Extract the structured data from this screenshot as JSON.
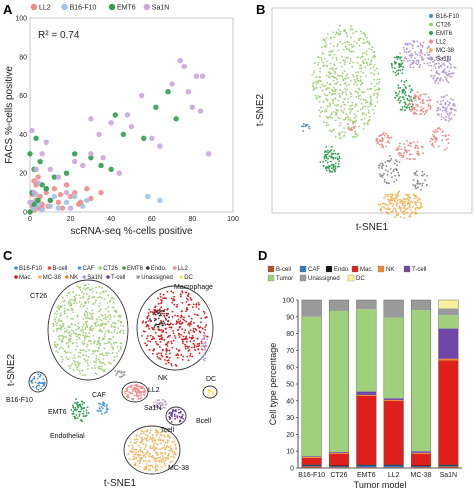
{
  "panels": {
    "a": {
      "label": "A"
    },
    "b": {
      "label": "B"
    },
    "c": {
      "label": "C"
    },
    "d": {
      "label": "D"
    }
  },
  "chart_data": [
    {
      "id": "A",
      "type": "scatter",
      "xlabel": "scRNA-seq %-cells positive",
      "ylabel": "FACS %-cells positive",
      "annotation": "R² = 0.74",
      "xlim": [
        0,
        100
      ],
      "ylim": [
        0,
        100
      ],
      "xticks": [
        0,
        20,
        40,
        60,
        80,
        100
      ],
      "yticks": [
        0,
        20,
        40,
        60,
        80,
        100
      ],
      "legend_position": "top",
      "series": [
        {
          "name": "LL2",
          "color": "#f08b88",
          "x": [
            0,
            1,
            2,
            3,
            4,
            5,
            6,
            8,
            10,
            12,
            15,
            18,
            20,
            22,
            25,
            28,
            30,
            35,
            3,
            6,
            9,
            14,
            2,
            4,
            1,
            16,
            24
          ],
          "y": [
            0,
            3,
            1,
            6,
            2,
            8,
            4,
            10,
            6,
            12,
            9,
            14,
            8,
            10,
            5,
            12,
            7,
            10,
            14,
            2,
            3,
            5,
            16,
            18,
            9,
            2,
            4
          ]
        },
        {
          "name": "B16-F10",
          "color": "#9ec4e8",
          "x": [
            0,
            2,
            4,
            6,
            10,
            14,
            18,
            22,
            28,
            3,
            8,
            12,
            58,
            64,
            1,
            26
          ],
          "y": [
            0,
            2,
            4,
            1,
            3,
            2,
            5,
            8,
            6,
            9,
            12,
            8,
            8,
            6,
            5,
            3
          ]
        },
        {
          "name": "EMT6",
          "color": "#2e9e4f",
          "x": [
            0,
            1,
            2,
            3,
            5,
            8,
            12,
            18,
            22,
            30,
            35,
            42,
            46,
            56,
            62,
            68,
            72,
            2,
            6,
            10,
            40,
            0,
            4
          ],
          "y": [
            0,
            10,
            22,
            38,
            26,
            12,
            18,
            20,
            30,
            28,
            24,
            50,
            40,
            38,
            54,
            62,
            48,
            4,
            14,
            6,
            22,
            30,
            6
          ]
        },
        {
          "name": "Sa1N",
          "color": "#c9a6dc",
          "x": [
            0,
            2,
            4,
            6,
            10,
            14,
            18,
            22,
            26,
            30,
            34,
            36,
            40,
            48,
            50,
            55,
            60,
            70,
            74,
            76,
            78,
            82,
            85,
            80,
            84,
            88,
            30,
            44,
            64,
            8,
            20,
            1,
            3
          ],
          "y": [
            5,
            10,
            15,
            30,
            22,
            18,
            10,
            26,
            24,
            30,
            40,
            28,
            46,
            50,
            44,
            60,
            38,
            66,
            78,
            75,
            62,
            70,
            70,
            54,
            52,
            30,
            48,
            20,
            34,
            36,
            2,
            42,
            22
          ]
        }
      ]
    },
    {
      "id": "B",
      "type": "scatter",
      "xlabel": "t-SNE1",
      "ylabel": "t-SNE2",
      "legend_position": "top-right",
      "series": [
        {
          "name": "B16-F10",
          "color": "#4a90c8"
        },
        {
          "name": "CT26",
          "color": "#9fd17a"
        },
        {
          "name": "EMT6",
          "color": "#2e9e4f"
        },
        {
          "name": "LL2",
          "color": "#f08b88"
        },
        {
          "name": "MC-38",
          "color": "#f4b45c"
        },
        {
          "name": "Sa1N",
          "color": "#b69bd6"
        }
      ]
    },
    {
      "id": "C",
      "type": "scatter",
      "xlabel": "t-SNE1",
      "ylabel": "t-SNE2",
      "legend_position": "top",
      "series": [
        {
          "name": "B16-F10",
          "color": "#4a90c8"
        },
        {
          "name": "B-cell",
          "color": "#e44d2e"
        },
        {
          "name": "CAF",
          "color": "#4aa3df"
        },
        {
          "name": "CT26",
          "color": "#9fd17a"
        },
        {
          "name": "EMT6",
          "color": "#2e9e4f"
        },
        {
          "name": "Endo.",
          "color": "#333333"
        },
        {
          "name": "LL2",
          "color": "#f08b88"
        },
        {
          "name": "Mac.",
          "color": "#d7191c"
        },
        {
          "name": "MC-38",
          "color": "#f4b45c"
        },
        {
          "name": "NK",
          "color": "#e97f2a"
        },
        {
          "name": "Sa1N",
          "color": "#b69bd6"
        },
        {
          "name": "T-cell",
          "color": "#6a3d9a"
        },
        {
          "name": "Unassigned",
          "color": "#999999"
        },
        {
          "name": "DC",
          "color": "#f6e64a"
        }
      ],
      "annotations": [
        "CT26",
        "Macrophage",
        "B16-F10",
        "CAF",
        "EMT6",
        "Endothelial",
        "LL2",
        "NK",
        "Sa1N",
        "DC",
        "Bcell",
        "Tcell",
        "MC-38"
      ]
    },
    {
      "id": "D",
      "type": "bar",
      "stacked": true,
      "xlabel": "Tumor model",
      "ylabel": "Cell type percentage",
      "ylim": [
        0,
        100
      ],
      "yticks": [
        0,
        10,
        20,
        30,
        40,
        50,
        60,
        70,
        80,
        90,
        100
      ],
      "categories": [
        "B16-F10",
        "CT26",
        "EMT6",
        "LL2",
        "MC-38",
        "Sa1N"
      ],
      "legend_position": "top",
      "series": [
        {
          "name": "B-cell",
          "color": "#b5502a",
          "values": [
            1,
            0.5,
            0.5,
            0.5,
            0.5,
            1
          ]
        },
        {
          "name": "CAF",
          "color": "#3b78c2",
          "values": [
            0.5,
            0.5,
            1,
            1,
            0.5,
            0.5
          ]
        },
        {
          "name": "Endo.",
          "color": "#111111",
          "values": [
            0.5,
            0.5,
            0.5,
            0.5,
            0.5,
            0.5
          ]
        },
        {
          "name": "Mac.",
          "color": "#e0201b",
          "values": [
            4,
            7,
            41,
            38,
            7,
            62
          ]
        },
        {
          "name": "NK",
          "color": "#f08a2a",
          "values": [
            0.5,
            0.5,
            0.5,
            0.5,
            0.5,
            1
          ]
        },
        {
          "name": "T-cell",
          "color": "#6f45a8",
          "values": [
            0.5,
            0.5,
            2,
            1,
            1,
            18
          ]
        },
        {
          "name": "Tumor",
          "color": "#9fd17a",
          "values": [
            83,
            84,
            49,
            48,
            84,
            8
          ]
        },
        {
          "name": "Unassigned",
          "color": "#9a9a9a",
          "values": [
            10,
            6.5,
            5.5,
            10.5,
            6,
            4
          ]
        },
        {
          "name": "DC",
          "color": "#f7f09c",
          "values": [
            0,
            0,
            0,
            0,
            0,
            5
          ]
        }
      ]
    }
  ]
}
